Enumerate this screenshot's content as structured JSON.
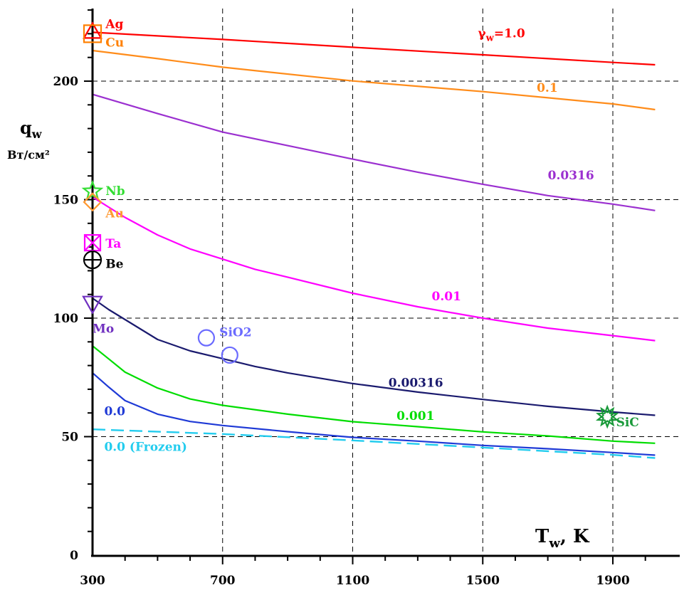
{
  "chart_data": {
    "type": "line",
    "xlabel": {
      "main": "T",
      "sub": "w",
      "unit": ", K"
    },
    "ylabel": {
      "main": "q",
      "sub": "w",
      "unit": "Вт/см²"
    },
    "xlim": [
      300,
      2030
    ],
    "ylim": [
      0,
      240
    ],
    "xticks": [
      300,
      700,
      1100,
      1500,
      1900
    ],
    "yticks": [
      0,
      50,
      100,
      150,
      200
    ],
    "grid": true,
    "series": [
      {
        "name": "γw=1.0",
        "color": "#ff0000",
        "x": [
          300,
          700,
          1100,
          1500,
          1900,
          2030
        ],
        "y": [
          220.6,
          217.6,
          214.3,
          211.1,
          207.9,
          206.9
        ],
        "label": {
          "main": "γ",
          "sub": "w",
          "rest": "=1.0",
          "x": 1485,
          "y": 218.5
        }
      },
      {
        "name": "0.1",
        "color": "#ff8c1a",
        "x": [
          300,
          500,
          700,
          1100,
          1500,
          1900,
          2030
        ],
        "y": [
          212.9,
          209.5,
          205.9,
          200.1,
          195.6,
          190.4,
          188.0
        ],
        "label": {
          "text": "0.1",
          "x": 1666,
          "y": 195.5
        }
      },
      {
        "name": "0.0316",
        "color": "#9b30d0",
        "x": [
          300,
          500,
          700,
          900,
          1100,
          1300,
          1500,
          1700,
          1900,
          2030
        ],
        "y": [
          194.4,
          186.3,
          178.5,
          172.8,
          167.1,
          161.6,
          156.5,
          151.7,
          148.1,
          145.4
        ],
        "label": {
          "text": "0.0316",
          "x": 1700,
          "y": 158.5
        }
      },
      {
        "name": "0.01",
        "color": "#ff00ff",
        "x": [
          300,
          400,
          500,
          600,
          700,
          800,
          900,
          1100,
          1300,
          1500,
          1700,
          1900,
          2030
        ],
        "y": [
          151.1,
          142.5,
          135.1,
          129.2,
          124.9,
          120.6,
          117.3,
          110.5,
          104.8,
          100.0,
          95.8,
          92.6,
          90.5
        ],
        "label": {
          "text": "0.01",
          "x": 1343,
          "y": 107.5
        }
      },
      {
        "name": "0.00316",
        "color": "#1a1a6e",
        "x": [
          300,
          350,
          400,
          500,
          600,
          700,
          800,
          900,
          1100,
          1300,
          1500,
          1700,
          1900,
          2030
        ],
        "y": [
          108.4,
          103.6,
          99.4,
          91.0,
          86.2,
          82.9,
          79.6,
          76.9,
          72.4,
          68.8,
          65.7,
          62.8,
          60.4,
          59.0
        ],
        "label": {
          "text": "0.00316",
          "x": 1210,
          "y": 71.0
        }
      },
      {
        "name": "0.001",
        "color": "#00dd00",
        "x": [
          300,
          350,
          400,
          500,
          600,
          700,
          900,
          1100,
          1300,
          1500,
          1700,
          1900,
          2030
        ],
        "y": [
          88.3,
          82.8,
          77.2,
          70.5,
          65.9,
          63.2,
          59.5,
          56.3,
          54.2,
          52.0,
          50.3,
          48.1,
          47.2
        ],
        "label": {
          "text": "0.001",
          "x": 1235,
          "y": 57.0
        }
      },
      {
        "name": "0.0",
        "color": "#1f3ad6",
        "x": [
          300,
          350,
          400,
          500,
          600,
          700,
          900,
          1100,
          1300,
          1500,
          1700,
          1900,
          2030
        ],
        "y": [
          76.9,
          70.9,
          65.2,
          59.5,
          56.4,
          54.7,
          52.1,
          49.7,
          48.1,
          46.3,
          44.9,
          43.3,
          42.2
        ],
        "label": {
          "text": "0.0",
          "x": 336,
          "y": 59.0
        }
      },
      {
        "name": "0.0 (Frozen)",
        "color": "#22ccee",
        "dashed": true,
        "x": [
          300,
          700,
          1100,
          1500,
          1900,
          2030
        ],
        "y": [
          53.1,
          51.1,
          48.4,
          45.4,
          42.3,
          41.0
        ],
        "label": {
          "text": "0.0 (Frozen)",
          "x": 336,
          "y": 44.0
        }
      }
    ],
    "markers": [
      {
        "name": "Ag",
        "shape": "triangle-up",
        "color": "#ff0000",
        "x": 300,
        "y": 220.9,
        "label_x": 340,
        "label_y": 222.3,
        "label_color": "#ff0000"
      },
      {
        "name": "Cu",
        "shape": "square",
        "color": "#ff8000",
        "x": 300,
        "y": 220.0,
        "label_x": 340,
        "label_y": 214.5,
        "label_color": "#ff8000"
      },
      {
        "name": "Nb",
        "shape": "star5",
        "color": "#33dd33",
        "x": 300,
        "y": 153.5,
        "label_x": 340,
        "label_y": 151.9,
        "label_color": "#33dd33"
      },
      {
        "name": "Au",
        "shape": "diamond",
        "color": "#ff9933",
        "x": 300,
        "y": 149.0,
        "label_x": 340,
        "label_y": 142.5,
        "label_color": "#ff9933"
      },
      {
        "name": "Ta",
        "shape": "square-x",
        "color": "#ff00ff",
        "x": 300,
        "y": 131.8,
        "label_x": 340,
        "label_y": 129.7,
        "label_color": "#ff00ff"
      },
      {
        "name": "Be",
        "shape": "circle-plus",
        "color": "#000000",
        "x": 300,
        "y": 124.6,
        "label_x": 340,
        "label_y": 121.2,
        "label_color": "#000000"
      },
      {
        "name": "Mo",
        "shape": "triangle-down",
        "color": "#7030c0",
        "x": 300,
        "y": 105.5,
        "label_x": 300,
        "label_y": 93.8,
        "label_color": "#7030c0"
      },
      {
        "name": "SiO2",
        "shape": "circle",
        "color": "#6b6bff",
        "x": [
          650,
          722
        ],
        "y": [
          91.7,
          84.4
        ],
        "label_x": 690,
        "label_y": 92.4,
        "label_color": "#6b6bff"
      },
      {
        "name": "SiC",
        "shape": "star-double",
        "color": "#1a9a3a",
        "x": 1883,
        "y": 58.4,
        "label_x": 1910,
        "label_y": 54.3,
        "label_color": "#1a9a3a"
      }
    ]
  }
}
